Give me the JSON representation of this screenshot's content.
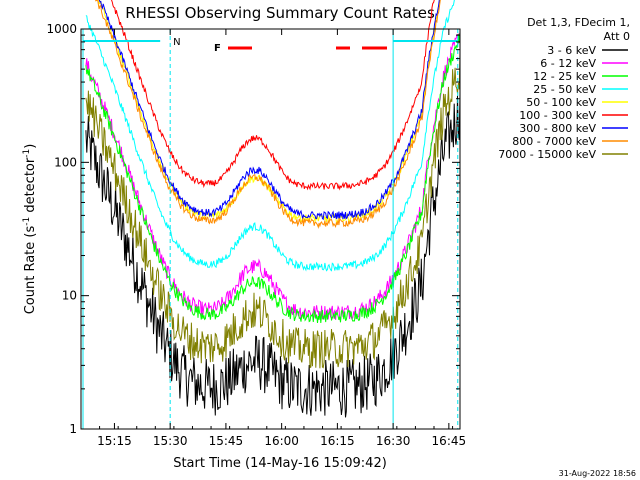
{
  "chart_data": {
    "type": "line",
    "title": "RHESSI Observing Summary Count Rates",
    "xlabel": "Start Time (14-May-16 15:09:42)",
    "ylabel_main": "Count Rate (s",
    "ylabel_sup1": "-1",
    "ylabel_mid": " detector",
    "ylabel_sup2": "-1",
    "ylabel_end": ")",
    "y_scale": "log",
    "ylim": [
      1,
      1000
    ],
    "xlim_minutes": [
      15.1,
      16.8
    ],
    "x_ticks": [
      {
        "t": 15.25,
        "label": "15:15"
      },
      {
        "t": 15.5,
        "label": "15:30"
      },
      {
        "t": 15.75,
        "label": "15:45"
      },
      {
        "t": 16.0,
        "label": "16:00"
      },
      {
        "t": 16.25,
        "label": "16:15"
      },
      {
        "t": 16.5,
        "label": "16:30"
      },
      {
        "t": 16.75,
        "label": "16:45"
      }
    ],
    "y_ticks": [
      {
        "v": 1,
        "label": "1"
      },
      {
        "v": 10,
        "label": "10"
      },
      {
        "v": 100,
        "label": "100"
      },
      {
        "v": 1000,
        "label": "1000"
      }
    ],
    "legend_header": [
      "Det 1,3, FDecim 1,",
      "Att 0"
    ],
    "night_flag": "N",
    "flare_flag": "F",
    "timestamp": "31-Aug-2022 18:56",
    "series": [
      {
        "name": "3 - 6 keV",
        "color": "#000000",
        "base": 2.0,
        "hump": 1.6,
        "noise": 0.22
      },
      {
        "name": "6 - 12 keV",
        "color": "#ff00ff",
        "base": 7.5,
        "hump": 2.2,
        "noise": 0.06
      },
      {
        "name": "12 - 25 keV",
        "color": "#00ff00",
        "base": 7.0,
        "hump": 1.8,
        "noise": 0.05
      },
      {
        "name": "25 - 50 keV",
        "color": "#00ffff",
        "base": 16.5,
        "hump": 2.0,
        "noise": 0.03
      },
      {
        "name": "50 - 100 keV",
        "color": "#ffff00",
        "base": 38,
        "hump": 2.0,
        "noise": 0.03
      },
      {
        "name": "100 - 300 keV",
        "color": "#ff0000",
        "base": 66,
        "hump": 2.3,
        "noise": 0.025
      },
      {
        "name": "300 - 800 keV",
        "color": "#0000ff",
        "base": 40,
        "hump": 2.2,
        "noise": 0.03
      },
      {
        "name": "800 - 7000 keV",
        "color": "#ff8c00",
        "base": 35,
        "hump": 2.2,
        "noise": 0.03
      },
      {
        "name": "7000 - 15000 keV",
        "color": "#808000",
        "base": 4.0,
        "hump": 1.9,
        "noise": 0.15
      }
    ]
  }
}
